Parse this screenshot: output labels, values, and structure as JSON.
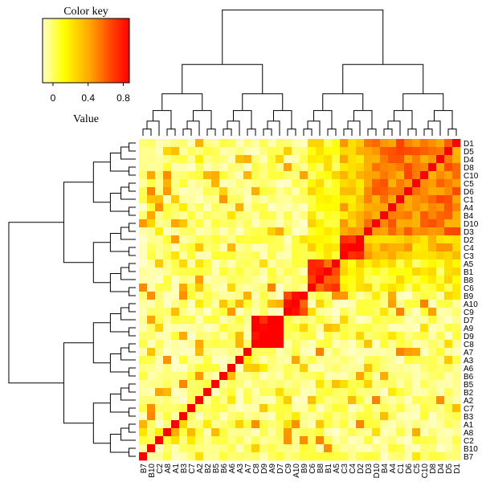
{
  "chart_data": {
    "type": "heatmap",
    "title": "",
    "xlabel": "",
    "ylabel": "",
    "color_key": {
      "title": "Color key",
      "label": "Value",
      "ticks": [
        "0",
        "0.4",
        "0.8"
      ],
      "tick_values": [
        0,
        0.4,
        0.8
      ],
      "range": [
        0,
        1
      ],
      "colors": [
        "#ffffc8",
        "#ffff00",
        "#ffa500",
        "#ff4000",
        "#ff0000"
      ]
    },
    "dendrograms": {
      "rows": true,
      "columns": true
    },
    "column_labels": [
      "B7",
      "B10",
      "C2",
      "A8",
      "A1",
      "B3",
      "C7",
      "A2",
      "B2",
      "B5",
      "B6",
      "A6",
      "A3",
      "A7",
      "C8",
      "D9",
      "A9",
      "D7",
      "C9",
      "A10",
      "B9",
      "C6",
      "B8",
      "B1",
      "A5",
      "C3",
      "C4",
      "D2",
      "D3",
      "D10",
      "B4",
      "A4",
      "C1",
      "D6",
      "C5",
      "C10",
      "D8",
      "D4",
      "D5",
      "D1"
    ],
    "row_labels": [
      "D1",
      "D5",
      "D4",
      "D8",
      "C10",
      "C5",
      "D6",
      "C1",
      "A4",
      "B4",
      "D10",
      "D3",
      "D2",
      "C4",
      "C3",
      "A5",
      "B1",
      "B8",
      "C6",
      "B9",
      "A10",
      "C9",
      "D7",
      "A9",
      "D9",
      "C8",
      "A7",
      "A3",
      "A6",
      "B6",
      "B5",
      "B2",
      "A2",
      "C7",
      "B3",
      "A1",
      "A8",
      "C2",
      "B10",
      "B7"
    ],
    "blocks": [
      {
        "members": [
          "C8",
          "D9",
          "A9",
          "D7"
        ],
        "within": 0.95
      },
      {
        "members": [
          "C9",
          "A10",
          "B9"
        ],
        "within": 0.85
      },
      {
        "members": [
          "C6",
          "B8",
          "B1",
          "A5"
        ],
        "within": 0.8
      },
      {
        "members": [
          "C3",
          "C4",
          "D2"
        ],
        "within": 0.9
      },
      {
        "members": [
          "D3",
          "D10",
          "B4",
          "A4",
          "C1",
          "D6",
          "C5",
          "C10",
          "D8",
          "D4",
          "D5",
          "D1"
        ],
        "within": 0.65
      }
    ],
    "between_blocks": [
      {
        "a": 3,
        "b": 4,
        "value": 0.45
      },
      {
        "a": 2,
        "b": 4,
        "value": 0.25
      },
      {
        "a": 2,
        "b": 3,
        "value": 0.3
      }
    ]
  }
}
